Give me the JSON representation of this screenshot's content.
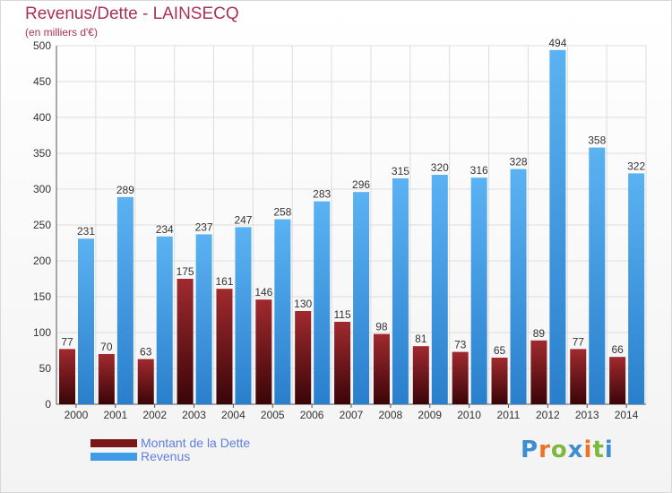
{
  "header": {
    "title": "Revenus/Dette - LAINSECQ",
    "subtitle": "(en milliers d'€)"
  },
  "colors": {
    "dette": "#7a1518",
    "revenus": "#3f9be5",
    "title": "#a8325b",
    "legend_text": "#5f7fe0"
  },
  "legend": {
    "items": [
      {
        "label": "Montant de la Dette",
        "color": "#7a1518"
      },
      {
        "label": "Revenus",
        "color": "#3f9be5"
      }
    ]
  },
  "logo": {
    "text": "Proxiti",
    "letter_colors": [
      "#3d8ed1",
      "#e8742a",
      "#7db83a",
      "#3d8ed1",
      "#e8742a",
      "#7db83a",
      "#3d8ed1"
    ]
  },
  "chart_data": {
    "type": "bar",
    "title": "Revenus/Dette - LAINSECQ",
    "subtitle": "(en milliers d'€)",
    "categories": [
      "2000",
      "2001",
      "2002",
      "2003",
      "2004",
      "2005",
      "2006",
      "2007",
      "2008",
      "2009",
      "2010",
      "2011",
      "2012",
      "2013",
      "2014"
    ],
    "series": [
      {
        "name": "Montant de la Dette",
        "color": "#7a1518",
        "values": [
          77,
          70,
          63,
          175,
          161,
          146,
          130,
          115,
          98,
          81,
          73,
          65,
          89,
          77,
          66
        ]
      },
      {
        "name": "Revenus",
        "color": "#3f9be5",
        "values": [
          231,
          289,
          234,
          237,
          247,
          258,
          283,
          296,
          315,
          320,
          316,
          328,
          494,
          358,
          322
        ]
      }
    ],
    "ylim": [
      0,
      500
    ],
    "yticks": [
      0,
      50,
      100,
      150,
      200,
      250,
      300,
      350,
      400,
      450,
      500
    ],
    "grid": true,
    "legend_position": "bottom-left"
  }
}
